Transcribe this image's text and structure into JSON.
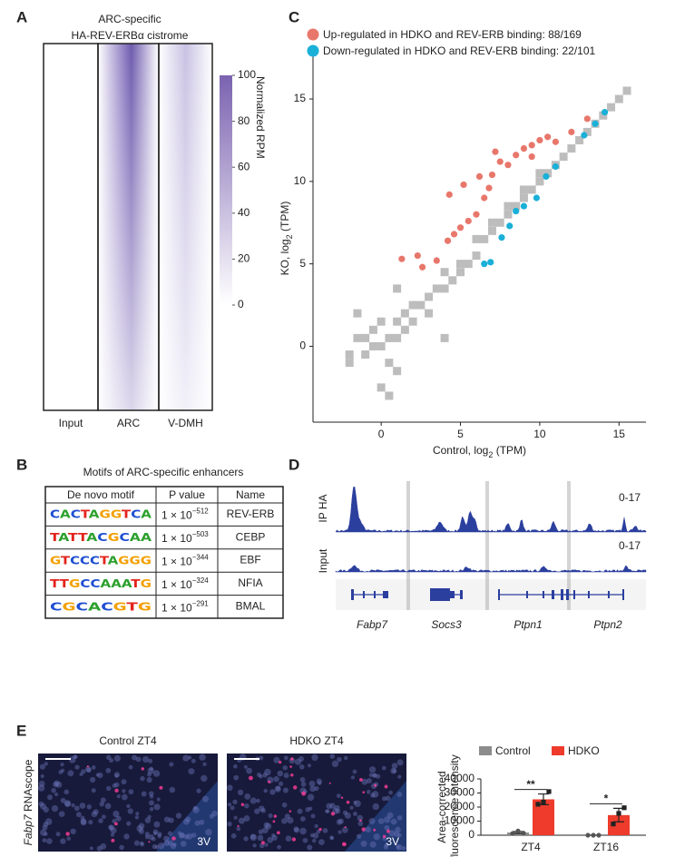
{
  "figure": {
    "panel_labels": [
      "A",
      "B",
      "C",
      "D",
      "E"
    ],
    "A": {
      "title": [
        "ARC-specific",
        "HA-REV-ERBα cistrome"
      ],
      "columns": [
        "Input",
        "ARC",
        "V-DMH"
      ]
    },
    "B": {
      "title": "Motifs of ARC-specific enhancers",
      "headers": [
        "De novo motif",
        "P value",
        "Name"
      ],
      "rows": [
        {
          "motif": "CACTAGGTCA",
          "p_base": "1 × 10",
          "p_exp": "−512",
          "name": "REV-ERB"
        },
        {
          "motif": "TATTACGCAA",
          "p_base": "1 × 10",
          "p_exp": "−503",
          "name": "CEBP"
        },
        {
          "motif": "GTCCCTAGGG",
          "p_base": "1 × 10",
          "p_exp": "−344",
          "name": "EBF"
        },
        {
          "motif": "TTGCCAAATG",
          "p_base": "1 × 10",
          "p_exp": "−324",
          "name": "NFIA"
        },
        {
          "motif": "CGCACGTG",
          "p_base": "1 × 10",
          "p_exp": "−291",
          "name": "BMAL"
        }
      ]
    },
    "D": {
      "tracks": [
        "IP HA",
        "Input"
      ],
      "ranges": [
        "0-17",
        "0-17"
      ],
      "genes": [
        "Fabp7",
        "Socs3",
        "Ptpn1",
        "Ptpn2"
      ]
    },
    "E": {
      "images": [
        "Control ZT4",
        "HDKO ZT4"
      ],
      "region": [
        "3V",
        "3V"
      ],
      "side_label": [
        "Fabp7",
        " RNAscope"
      ]
    }
  },
  "chart_data": [
    {
      "type": "heatmap",
      "colorbar_label": "Normalized RPM",
      "colorbar_lim": [
        0,
        100
      ],
      "colorbar_ticks": [
        0,
        20,
        40,
        60,
        80,
        100
      ],
      "color": "#7b63b0"
    },
    {
      "type": "scatter",
      "xlabel": [
        "Control, log",
        "2",
        " (TPM)"
      ],
      "ylabel": [
        "KO, log",
        "2",
        " (TPM)"
      ],
      "xlim": [
        -4.3,
        16.7
      ],
      "ylim": [
        -4.6,
        17.7
      ],
      "xticks": [
        0,
        5,
        10,
        15
      ],
      "yticks": [
        0,
        5,
        10,
        15
      ],
      "series": [
        {
          "color": "#bdbdbd",
          "x": [
            -2,
            -2,
            -1.5,
            -1,
            -1,
            -0.5,
            -0.5,
            0,
            0,
            0.5,
            0.5,
            1,
            1,
            1.5,
            1.5,
            2,
            2,
            2.5,
            3,
            3,
            3.5,
            4,
            4,
            4.5,
            5,
            5,
            5.5,
            6,
            6,
            6.5,
            7,
            7,
            7.5,
            8,
            8,
            8.5,
            9,
            9,
            9.5,
            10,
            10,
            10.5,
            11,
            11.5,
            12,
            12.5,
            13,
            13.5,
            14,
            14.5,
            15,
            15.5,
            0,
            1,
            0.5,
            -1.5,
            1,
            4
          ],
          "y": [
            -1,
            -0.5,
            0.5,
            -0.5,
            0.5,
            0,
            1,
            0,
            1.5,
            -1,
            0.5,
            0.5,
            1.5,
            1,
            2,
            1.5,
            2.5,
            2.5,
            3,
            2,
            3.5,
            3.5,
            4.5,
            4,
            5,
            4.5,
            5,
            5.5,
            6.5,
            6.5,
            7,
            7.5,
            7.5,
            8,
            8.5,
            8.5,
            9,
            9.5,
            9.5,
            10,
            10.5,
            10.5,
            11,
            11.5,
            12,
            12.5,
            13,
            13.5,
            14,
            14.5,
            15,
            15.5,
            -2.5,
            -1.5,
            -3,
            2,
            3.5,
            0.5
          ]
        },
        {
          "name": "Down-regulated in HDKO and REV-ERB binding: 22/101",
          "color": "#1ab0d8",
          "x": [
            6.5,
            6.9,
            7.6,
            8.1,
            8.5,
            9,
            9.8,
            10.4,
            11,
            12.8,
            13.5,
            14.1
          ],
          "y": [
            5,
            5.1,
            6.6,
            7.3,
            8.2,
            8.5,
            9,
            10.3,
            10.9,
            12.8,
            13.5,
            14.2
          ]
        },
        {
          "name": "Up-regulated in HDKO and REV-ERB binding: 88/169",
          "color": "#e8776b",
          "x": [
            1.3,
            2.3,
            2.6,
            3.5,
            4.2,
            4.6,
            5,
            5.5,
            6,
            6.5,
            6.8,
            7,
            7.5,
            8,
            8.5,
            9,
            9.5,
            10,
            10.5,
            11,
            12,
            13,
            4.3,
            5.2,
            6.2,
            7.2,
            9.5
          ],
          "y": [
            5.3,
            5.5,
            4.8,
            5.2,
            6.4,
            6.8,
            7.2,
            7.6,
            8,
            9,
            9.6,
            10.4,
            11.2,
            11,
            11.6,
            12,
            12.2,
            12.5,
            12.7,
            12.4,
            13,
            13.8,
            9.2,
            9.8,
            10.3,
            11.8,
            11.5
          ]
        }
      ]
    },
    {
      "type": "bar",
      "categories": [
        "ZT4",
        "ZT16"
      ],
      "ylabel": [
        "Area-corrected",
        "fluorescence intensity"
      ],
      "ylim": [
        0,
        40000
      ],
      "yticks": [
        0,
        10000,
        20000,
        30000,
        40000
      ],
      "series": [
        {
          "name": "Control",
          "color": "#8c8c8c",
          "values": [
            1900,
            0
          ],
          "errors": [
            700,
            0
          ],
          "points": [
            [
              1200,
              3000,
              1500
            ],
            [
              0,
              0,
              0
            ]
          ]
        },
        {
          "name": "HDKO",
          "color": "#ee3b2b",
          "values": [
            25500,
            14300
          ],
          "errors": [
            3800,
            4800
          ],
          "points": [
            [
              22000,
              23500,
              31000
            ],
            [
              8000,
              15500,
              19500
            ]
          ]
        }
      ],
      "annotations": [
        "**",
        "*"
      ]
    }
  ]
}
